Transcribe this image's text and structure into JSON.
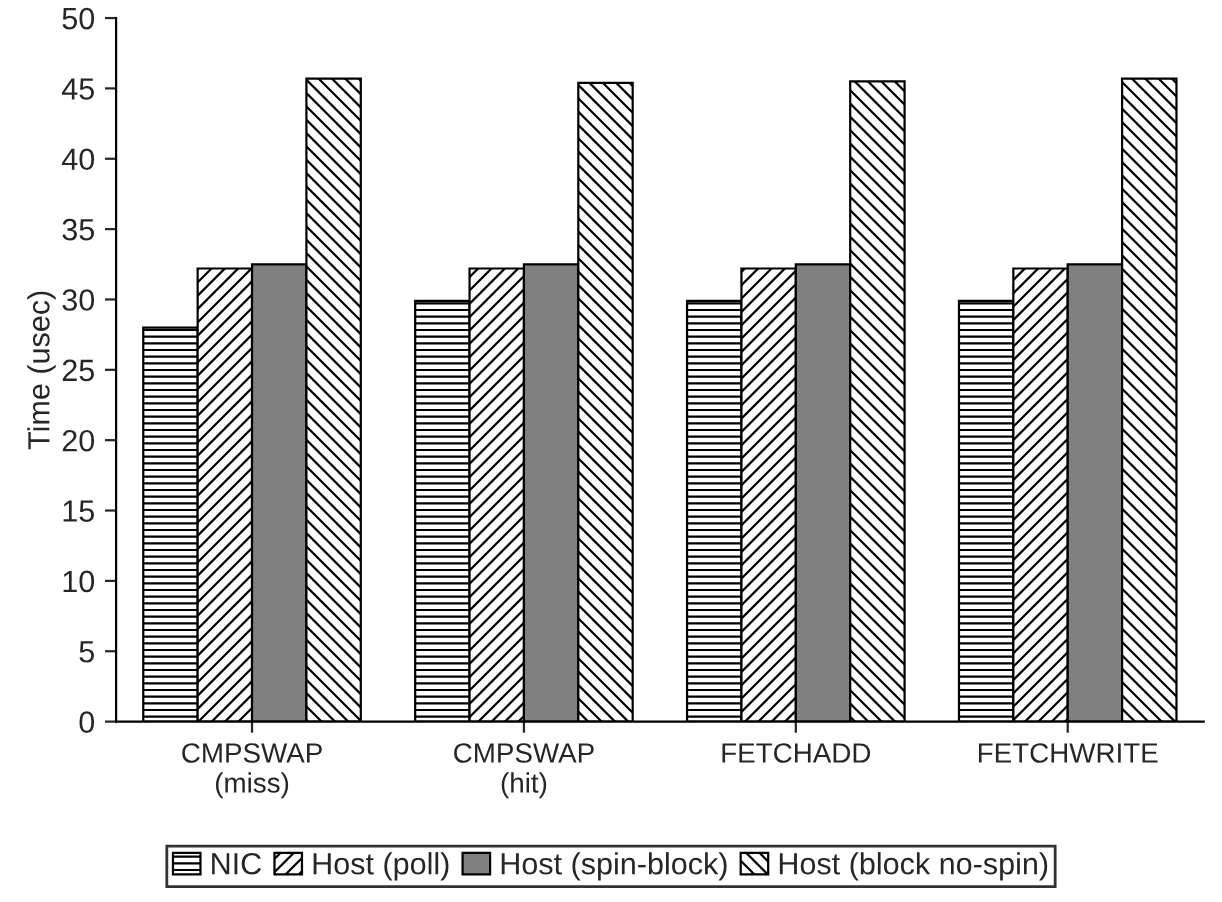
{
  "chart_data": {
    "type": "bar",
    "ylabel": "Time (usec)",
    "categories": [
      "CMPSWAP\n(miss)",
      "CMPSWAP\n(hit)",
      "FETCHADD",
      "FETCHWRITE"
    ],
    "series": [
      {
        "name": "NIC",
        "color": "#000000",
        "values": [
          28,
          29.9,
          29.9,
          29.9
        ]
      },
      {
        "name": "Host (poll)",
        "color": "#000000",
        "values": [
          32.2,
          32.2,
          32.2,
          32.2
        ]
      },
      {
        "name": "Host (spin-block)",
        "color": "#808080",
        "values": [
          32.5,
          32.5,
          32.5,
          32.5
        ]
      },
      {
        "name": "Host (block no-spin)",
        "color": "#000000",
        "values": [
          45.7,
          45.4,
          45.5,
          45.7
        ]
      }
    ],
    "ylim": [
      0,
      50
    ],
    "yticks": [
      0,
      5,
      10,
      15,
      20,
      25,
      30,
      35,
      40,
      45,
      50
    ],
    "grid": false,
    "legend": "bottom"
  }
}
